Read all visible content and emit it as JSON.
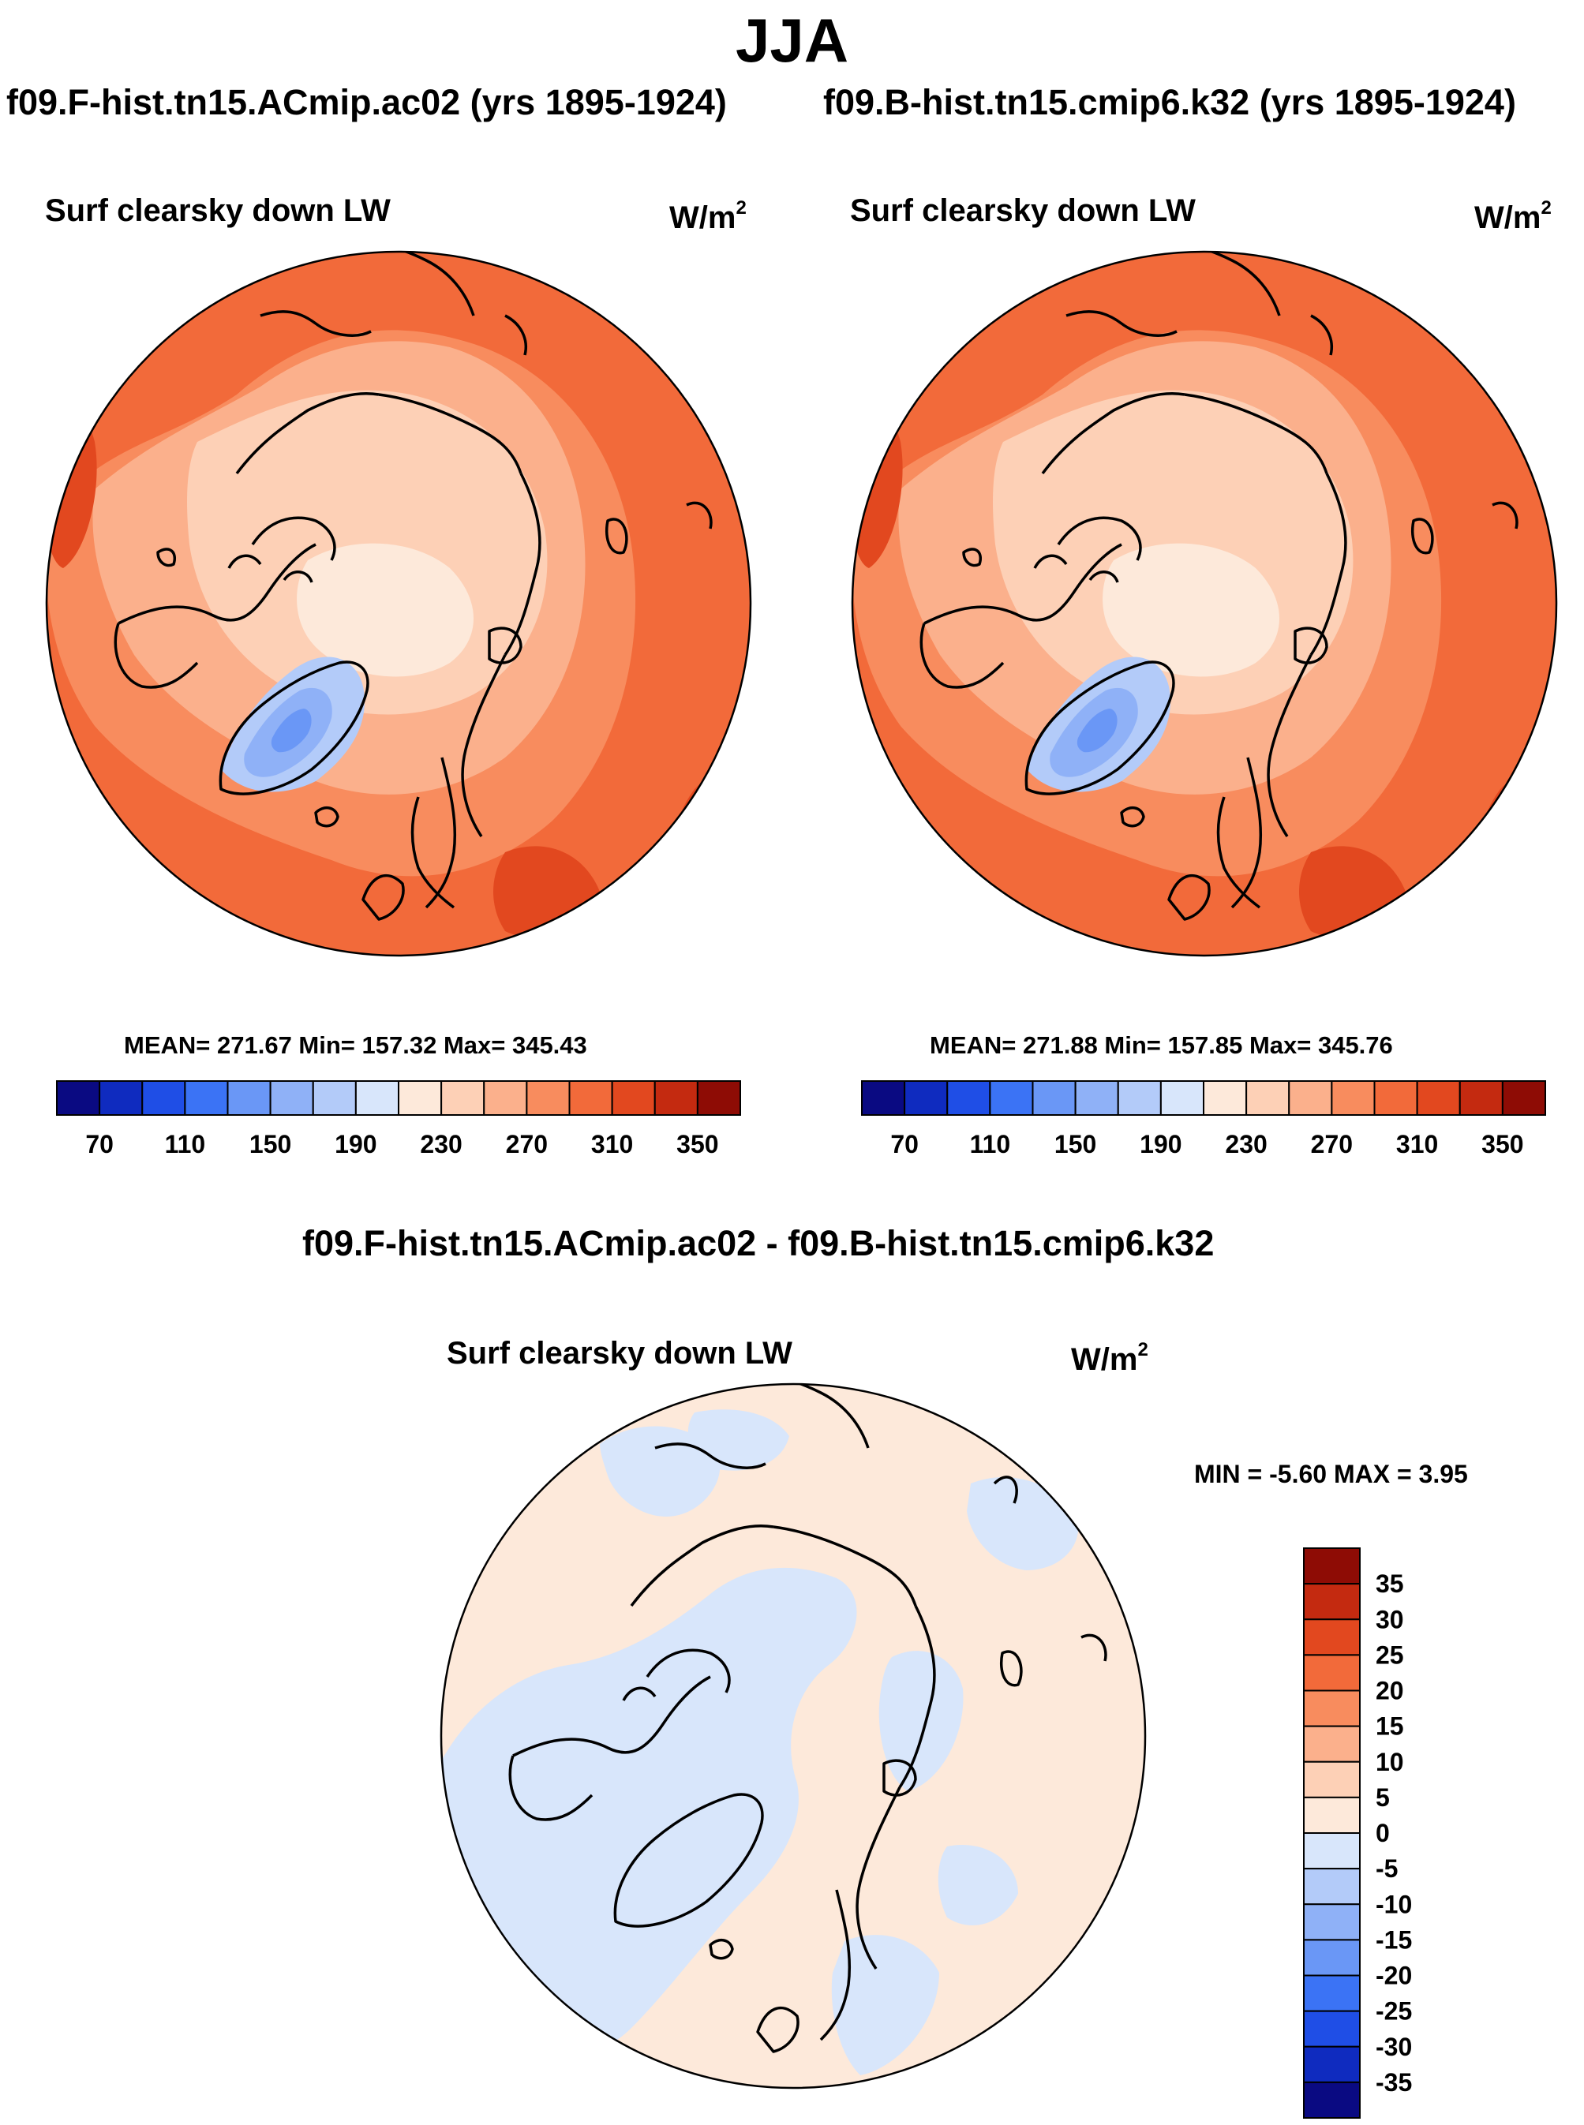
{
  "season_title": "JJA",
  "panels": [
    {
      "id": "left",
      "case_title": "f09.F-hist.tn15.ACmip.ac02 (yrs 1895-1924)",
      "variable": "Surf clearsky down LW",
      "units_base": "W/m",
      "units_exp": "2",
      "stats": "MEAN= 271.67  Min= 157.32  Max= 345.43",
      "mean": 271.67,
      "min": 157.32,
      "max": 345.43
    },
    {
      "id": "right",
      "case_title": "f09.B-hist.tn15.cmip6.k32 (yrs 1895-1924)",
      "variable": "Surf clearsky down LW",
      "units_base": "W/m",
      "units_exp": "2",
      "stats": "MEAN= 271.88  Min= 157.85  Max= 345.76",
      "mean": 271.88,
      "min": 157.85,
      "max": 345.76
    }
  ],
  "difference": {
    "title": "f09.F-hist.tn15.ACmip.ac02 - f09.B-hist.tn15.cmip6.k32",
    "variable": "Surf clearsky down LW",
    "units_base": "W/m",
    "units_exp": "2",
    "minmax": "MIN =  -5.60 MAX =   3.95",
    "min": -5.6,
    "max": 3.95
  },
  "abs_colorbar": {
    "tick_labels": [
      "70",
      "110",
      "150",
      "190",
      "230",
      "270",
      "310",
      "350"
    ],
    "colors": [
      "#0a0a82",
      "#0f2bbf",
      "#1f4ee6",
      "#3b73f5",
      "#6a97f6",
      "#8fb1f7",
      "#b3cbf9",
      "#d8e6fb",
      "#fde9da",
      "#fdd0b6",
      "#fbb08c",
      "#f88c5e",
      "#f26a3a",
      "#e2481f",
      "#c42a10",
      "#8e0c05"
    ]
  },
  "diff_colorbar": {
    "tick_labels": [
      "35",
      "30",
      "25",
      "20",
      "15",
      "10",
      "5",
      "0",
      "-5",
      "-10",
      "-15",
      "-20",
      "-25",
      "-30",
      "-35"
    ],
    "colors": [
      "#8e0c05",
      "#c42a10",
      "#e2481f",
      "#f26a3a",
      "#f88c5e",
      "#fbb08c",
      "#fdd0b6",
      "#fde9da",
      "#d8e6fb",
      "#b3cbf9",
      "#8fb1f7",
      "#6a97f6",
      "#3b73f5",
      "#1f4ee6",
      "#0f2bbf",
      "#0a0a82"
    ]
  },
  "map_colors": {
    "ocean_outer": "#f26a3a",
    "ring_mid": "#f88c5e",
    "ring_inner": "#fbb08c",
    "arctic": "#fdd0b6",
    "arctic_core": "#fde9da",
    "greenland": "#b3cbf9",
    "greenland_core": "#8fb1f7",
    "greenland_peak": "#6a97f6",
    "hot_spot": "#e2481f",
    "diff_pos": "#fde9da",
    "diff_neg": "#d8e6fb",
    "coast": "#000000"
  }
}
